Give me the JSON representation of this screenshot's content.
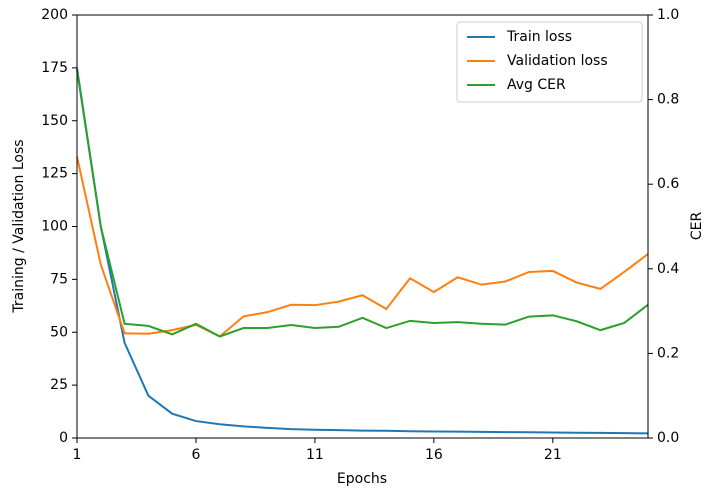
{
  "chart_data": {
    "type": "line",
    "xlabel": "Epochs",
    "ylabel": "Training / Validation Loss",
    "y2label": "CER",
    "x": [
      1,
      2,
      3,
      4,
      5,
      6,
      7,
      8,
      9,
      10,
      11,
      12,
      13,
      14,
      15,
      16,
      17,
      18,
      19,
      20,
      21,
      22,
      23,
      24,
      25
    ],
    "series": [
      {
        "name": "Train loss",
        "color": "#1f77b4",
        "values": [
          175,
          100,
          45,
          20,
          11.5,
          8,
          6.5,
          5.5,
          4.8,
          4.2,
          3.9,
          3.7,
          3.5,
          3.4,
          3.2,
          3.1,
          3.0,
          2.9,
          2.8,
          2.7,
          2.6,
          2.5,
          2.4,
          2.3,
          2.2
        ]
      },
      {
        "name": "Validation loss",
        "color": "#ff7f0e",
        "values": [
          133,
          82,
          49.5,
          49.3,
          51,
          53.5,
          48,
          57.5,
          59.5,
          63,
          62.8,
          64.5,
          67.5,
          61,
          75.5,
          69,
          76,
          72.5,
          74,
          78.5,
          79,
          73.5,
          70.5,
          78.5,
          87
        ]
      },
      {
        "name": "Avg CER",
        "color": "#2ca02c",
        "axis": "y2",
        "values": [
          0.87,
          0.5,
          0.27,
          0.265,
          0.245,
          0.27,
          0.24,
          0.26,
          0.26,
          0.267,
          0.26,
          0.263,
          0.284,
          0.26,
          0.277,
          0.272,
          0.274,
          0.27,
          0.268,
          0.287,
          0.29,
          0.276,
          0.255,
          0.272,
          0.315
        ]
      }
    ],
    "xlim": [
      1,
      25
    ],
    "xticks": [
      1,
      6,
      11,
      16,
      21
    ],
    "ylim": [
      0,
      200
    ],
    "yticks": [
      0,
      25,
      50,
      75,
      100,
      125,
      150,
      175,
      200
    ],
    "y2lim": [
      0,
      1
    ],
    "y2ticks": [
      {
        "value": 0,
        "label": "0.0"
      },
      0.2,
      0.4,
      0.6,
      0.8,
      {
        "value": 1,
        "label": "1.0"
      }
    ],
    "legend": "upper right",
    "grid": false
  }
}
